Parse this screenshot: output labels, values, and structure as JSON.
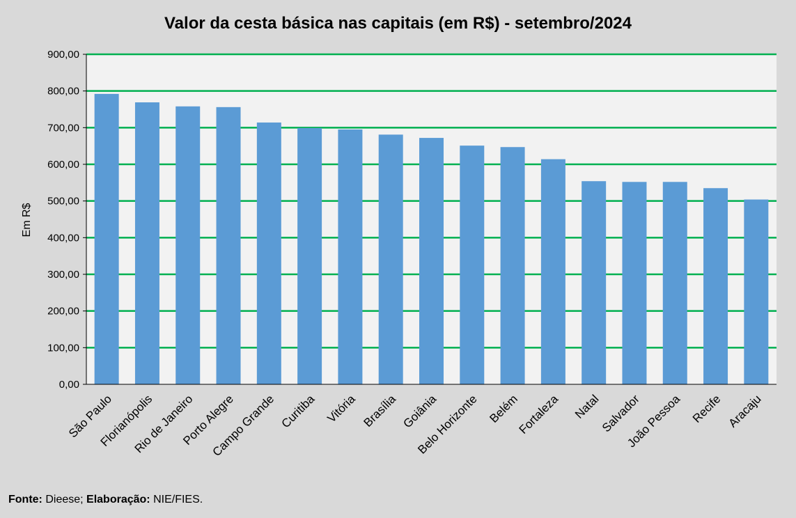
{
  "chart_data": {
    "type": "bar",
    "title": "Valor da cesta básica nas capitais (em R$) - setembro/2024",
    "ylabel": "Em R$",
    "xlabel": "",
    "ylim": [
      0,
      900
    ],
    "yticks": [
      "0,00",
      "100,00",
      "200,00",
      "300,00",
      "400,00",
      "500,00",
      "600,00",
      "700,00",
      "800,00",
      "900,00"
    ],
    "grid": true,
    "categories": [
      "São Paulo",
      "Florianópolis",
      "Rio de Janeiro",
      "Porto Alegre",
      "Campo Grande",
      "Curitiba",
      "Vitória",
      "Brasília",
      "Goiânia",
      "Belo Horizonte",
      "Belém",
      "Fortaleza",
      "Natal",
      "Salvador",
      "João Pessoa",
      "Recife",
      "Aracaju"
    ],
    "values": [
      792,
      769,
      758,
      756,
      714,
      699,
      695,
      681,
      672,
      651,
      647,
      614,
      554,
      552,
      552,
      535,
      504
    ],
    "bar_color": "#5b9bd5",
    "grid_color": "#00b050",
    "plot_bg": "#f2f2f2"
  },
  "source": {
    "label_fonte": "Fonte:",
    "fonte": "Dieese;",
    "label_elaboracao": "Elaboração:",
    "elaboracao": "NIE/FIES."
  }
}
